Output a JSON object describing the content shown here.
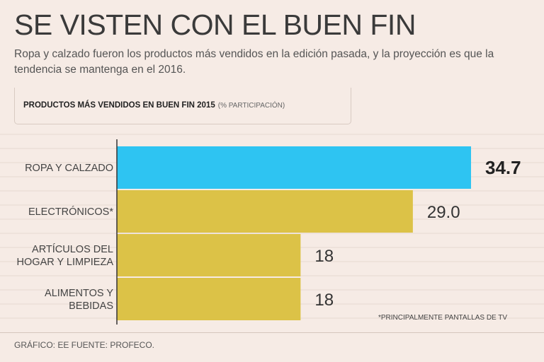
{
  "header": {
    "title": "SE VISTEN CON EL BUEN FIN",
    "subtitle": "Ropa y calzado fueron los productos más vendidos en la edición pasada, y la proyección es que la tendencia se mantenga en el 2016."
  },
  "chart": {
    "heading": "PRODUCTOS MÁS VENDIDOS EN BUEN FIN 2015",
    "heading_note": "(% PARTICIPACIÓN)",
    "footnote": "*PRINCIPALMENTE PANTALLAS DE TV"
  },
  "footer": {
    "source": "GRÁFICO: EE  FUENTE: PROFECO."
  },
  "colors": {
    "highlight": "#2ec4f2",
    "bar": "#dcc247",
    "background": "#f6ebe5",
    "grid": "#e7d9d1"
  },
  "chart_data": {
    "type": "bar",
    "orientation": "horizontal",
    "title": "PRODUCTOS MÁS VENDIDOS EN BUEN FIN 2015",
    "subtitle": "(% PARTICIPACIÓN)",
    "categories": [
      [
        "ROPA Y CALZADO"
      ],
      [
        "ELECTRÓNICOS*"
      ],
      [
        "ARTÍCULOS DEL",
        "HOGAR Y LIMPIEZA"
      ],
      [
        "ALIMENTOS Y",
        "BEBIDAS"
      ]
    ],
    "values": [
      34.7,
      29.0,
      18,
      18
    ],
    "value_labels": [
      "34.7",
      "29.0",
      "18",
      "18"
    ],
    "highlight_index": 0,
    "xlim": [
      0,
      40
    ],
    "xlabel": "",
    "ylabel": ""
  }
}
